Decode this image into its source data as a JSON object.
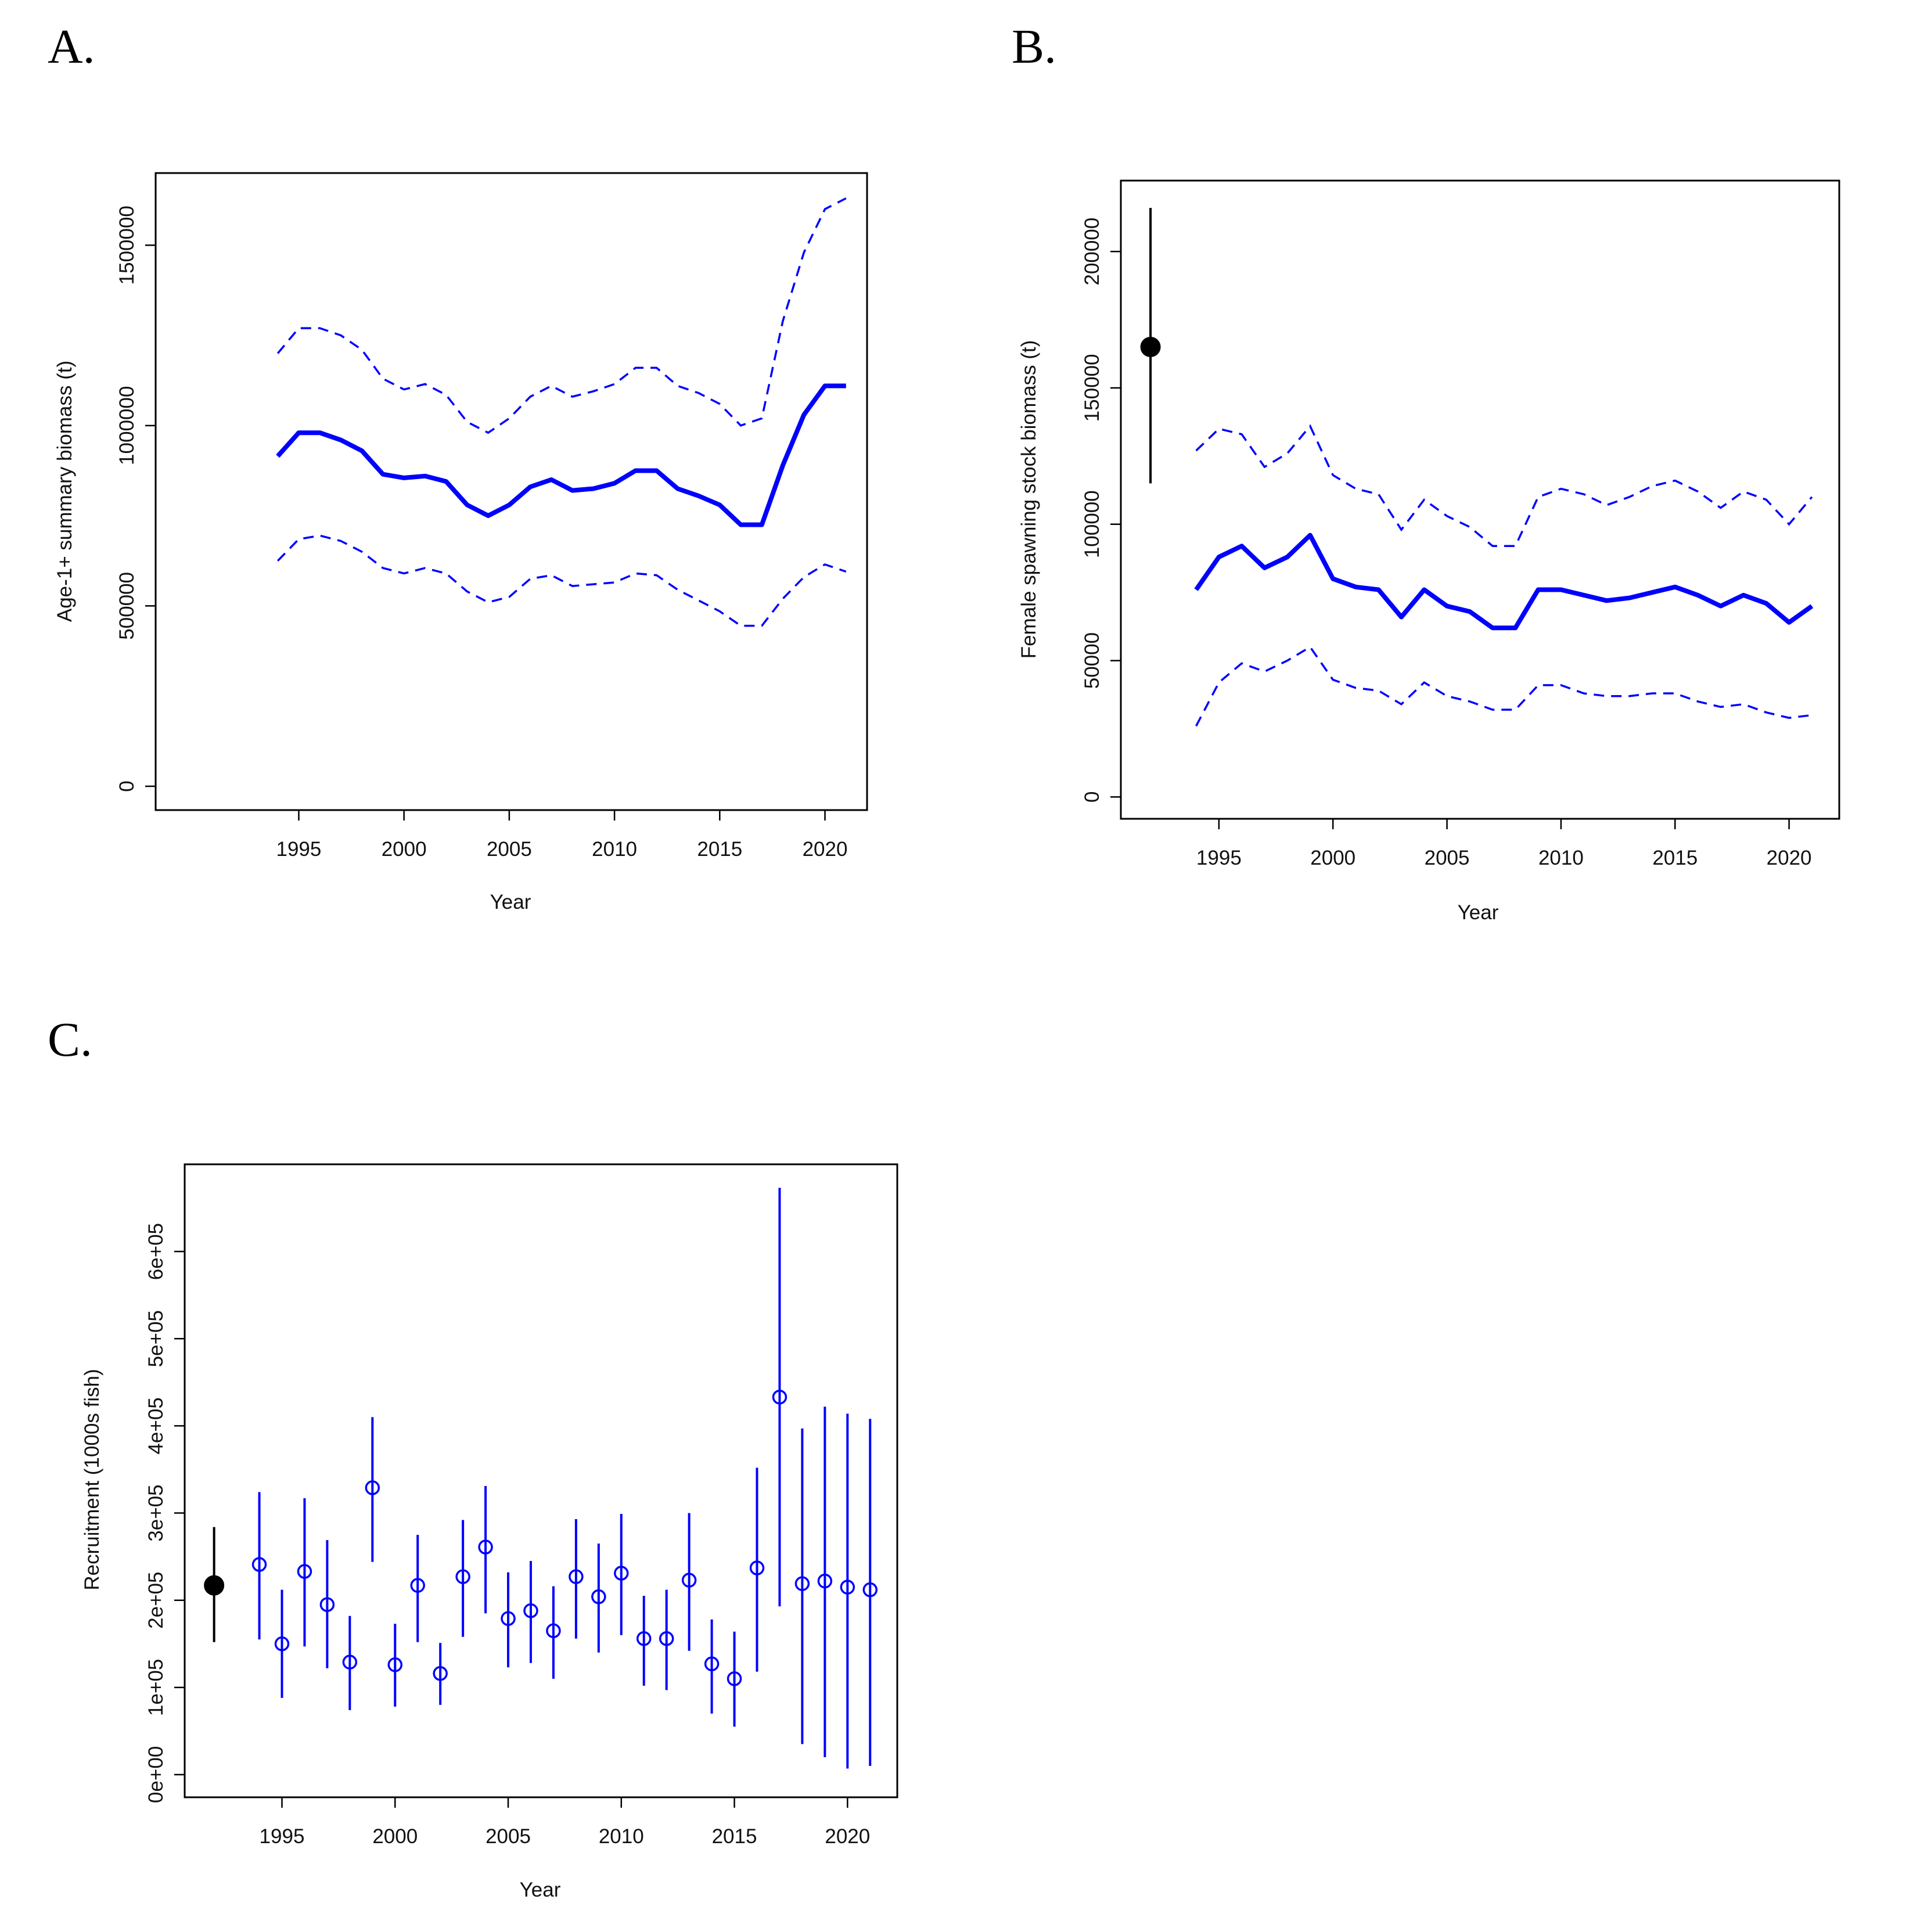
{
  "panels": [
    {
      "letter": "A."
    },
    {
      "letter": "B."
    },
    {
      "letter": "C."
    }
  ],
  "chart_data": [
    {
      "type": "line",
      "panel": "A.",
      "xlabel": "Year",
      "ylabel": "Age-1+ summary biomass (t)",
      "xlim": [
        1988.2,
        2022
      ],
      "ylim": [
        -66000,
        1700000
      ],
      "xticks": [
        1995,
        2000,
        2005,
        2010,
        2015,
        2020
      ],
      "yticks": [
        0,
        500000,
        1000000,
        1500000
      ],
      "ytick_labels": [
        "0",
        "500000",
        "1000000",
        "1500000"
      ],
      "x": [
        1994,
        1995,
        1996,
        1997,
        1998,
        1999,
        2000,
        2001,
        2002,
        2003,
        2004,
        2005,
        2006,
        2007,
        2008,
        2009,
        2010,
        2011,
        2012,
        2013,
        2014,
        2015,
        2016,
        2017,
        2018,
        2019,
        2020,
        2021
      ],
      "series": [
        {
          "style": "solid",
          "values": [
            915000,
            980000,
            980000,
            960000,
            930000,
            865000,
            855000,
            860000,
            845000,
            780000,
            750000,
            780000,
            830000,
            850000,
            820000,
            825000,
            840000,
            875000,
            875000,
            825000,
            805000,
            780000,
            725000,
            725000,
            890000,
            1030000,
            1110000,
            1110000
          ]
        },
        {
          "style": "dashed",
          "values": [
            1200000,
            1270000,
            1270000,
            1250000,
            1210000,
            1130000,
            1100000,
            1115000,
            1085000,
            1010000,
            980000,
            1020000,
            1080000,
            1110000,
            1080000,
            1095000,
            1115000,
            1160000,
            1160000,
            1110000,
            1090000,
            1060000,
            1000000,
            1020000,
            1290000,
            1480000,
            1600000,
            1630000
          ]
        },
        {
          "style": "dashed",
          "values": [
            625000,
            685000,
            695000,
            680000,
            650000,
            605000,
            590000,
            605000,
            590000,
            540000,
            510000,
            525000,
            575000,
            585000,
            555000,
            560000,
            565000,
            590000,
            585000,
            545000,
            515000,
            485000,
            445000,
            445000,
            520000,
            580000,
            615000,
            595000
          ]
        }
      ]
    },
    {
      "type": "line",
      "panel": "B.",
      "xlabel": "Year",
      "ylabel": "Female spawning stock biomass (t)",
      "xlim": [
        1990.7,
        2022.2
      ],
      "ylim": [
        -8000,
        226000
      ],
      "xticks": [
        1995,
        2000,
        2005,
        2010,
        2015,
        2020
      ],
      "yticks": [
        0,
        50000,
        100000,
        150000,
        200000
      ],
      "ytick_labels": [
        "0",
        "50000",
        "100000",
        "150000",
        "200000"
      ],
      "unfished_point": {
        "x": 1992,
        "y": 165000,
        "low": 115000,
        "high": 216000
      },
      "x": [
        1994,
        1995,
        1996,
        1997,
        1998,
        1999,
        2000,
        2001,
        2002,
        2003,
        2004,
        2005,
        2006,
        2007,
        2008,
        2009,
        2010,
        2011,
        2012,
        2013,
        2014,
        2015,
        2016,
        2017,
        2018,
        2019,
        2020,
        2021
      ],
      "series": [
        {
          "style": "solid",
          "values": [
            76000,
            88000,
            92000,
            84000,
            88000,
            96000,
            80000,
            77000,
            76000,
            66000,
            76000,
            70000,
            68000,
            62000,
            62000,
            76000,
            76000,
            74000,
            72000,
            73000,
            75000,
            77000,
            74000,
            70000,
            74000,
            71000,
            64000,
            70000
          ]
        },
        {
          "style": "dashed",
          "values": [
            127000,
            135000,
            133000,
            121000,
            126000,
            136000,
            118000,
            113000,
            111000,
            98000,
            109000,
            103000,
            99000,
            92000,
            92000,
            110000,
            113000,
            111000,
            107000,
            110000,
            114000,
            116000,
            112000,
            106000,
            112000,
            109000,
            100000,
            110000
          ]
        },
        {
          "style": "dashed",
          "values": [
            26000,
            42000,
            49000,
            46000,
            50000,
            55000,
            43000,
            40000,
            39000,
            34000,
            42000,
            37000,
            35000,
            32000,
            32000,
            41000,
            41000,
            38000,
            37000,
            37000,
            38000,
            38000,
            35000,
            33000,
            34000,
            31000,
            29000,
            30000
          ]
        }
      ]
    },
    {
      "type": "scatter",
      "panel": "C.",
      "xlabel": "Year",
      "ylabel": "Recruitment (1000s fish)",
      "xlim": [
        1990.7,
        2022.2
      ],
      "ylim": [
        -26000,
        700000
      ],
      "xticks": [
        1995,
        2000,
        2005,
        2010,
        2015,
        2020
      ],
      "yticks": [
        0,
        100000,
        200000,
        300000,
        400000,
        500000,
        600000
      ],
      "ytick_labels": [
        "0e+00",
        "1e+05",
        "2e+05",
        "3e+05",
        "4e+05",
        "5e+05",
        "6e+05"
      ],
      "unfished_point": {
        "x": 1992,
        "y": 217000,
        "low": 152000,
        "high": 284000
      },
      "x": [
        1994,
        1995,
        1996,
        1997,
        1998,
        1999,
        2000,
        2001,
        2002,
        2003,
        2004,
        2005,
        2006,
        2007,
        2008,
        2009,
        2010,
        2011,
        2012,
        2013,
        2014,
        2015,
        2016,
        2017,
        2018,
        2019,
        2020,
        2021
      ],
      "values": [
        241000,
        150000,
        233000,
        195000,
        129000,
        329000,
        126000,
        217000,
        116000,
        227000,
        261000,
        179000,
        188000,
        165000,
        227000,
        204000,
        231000,
        156000,
        156000,
        223000,
        127000,
        110000,
        237000,
        433000,
        219000,
        222000,
        215000,
        212000
      ],
      "low": [
        155000,
        88000,
        147000,
        122000,
        74000,
        244000,
        78000,
        152000,
        80000,
        158000,
        185000,
        123000,
        128000,
        110000,
        156000,
        140000,
        160000,
        102000,
        97000,
        142000,
        70000,
        55000,
        118000,
        193000,
        35000,
        20000,
        7000,
        10000
      ],
      "high": [
        324000,
        212000,
        317000,
        269000,
        182000,
        410000,
        173000,
        275000,
        151000,
        292000,
        331000,
        232000,
        245000,
        216000,
        293000,
        265000,
        299000,
        205000,
        212000,
        300000,
        178000,
        164000,
        352000,
        673000,
        397000,
        422000,
        414000,
        408000
      ]
    }
  ]
}
